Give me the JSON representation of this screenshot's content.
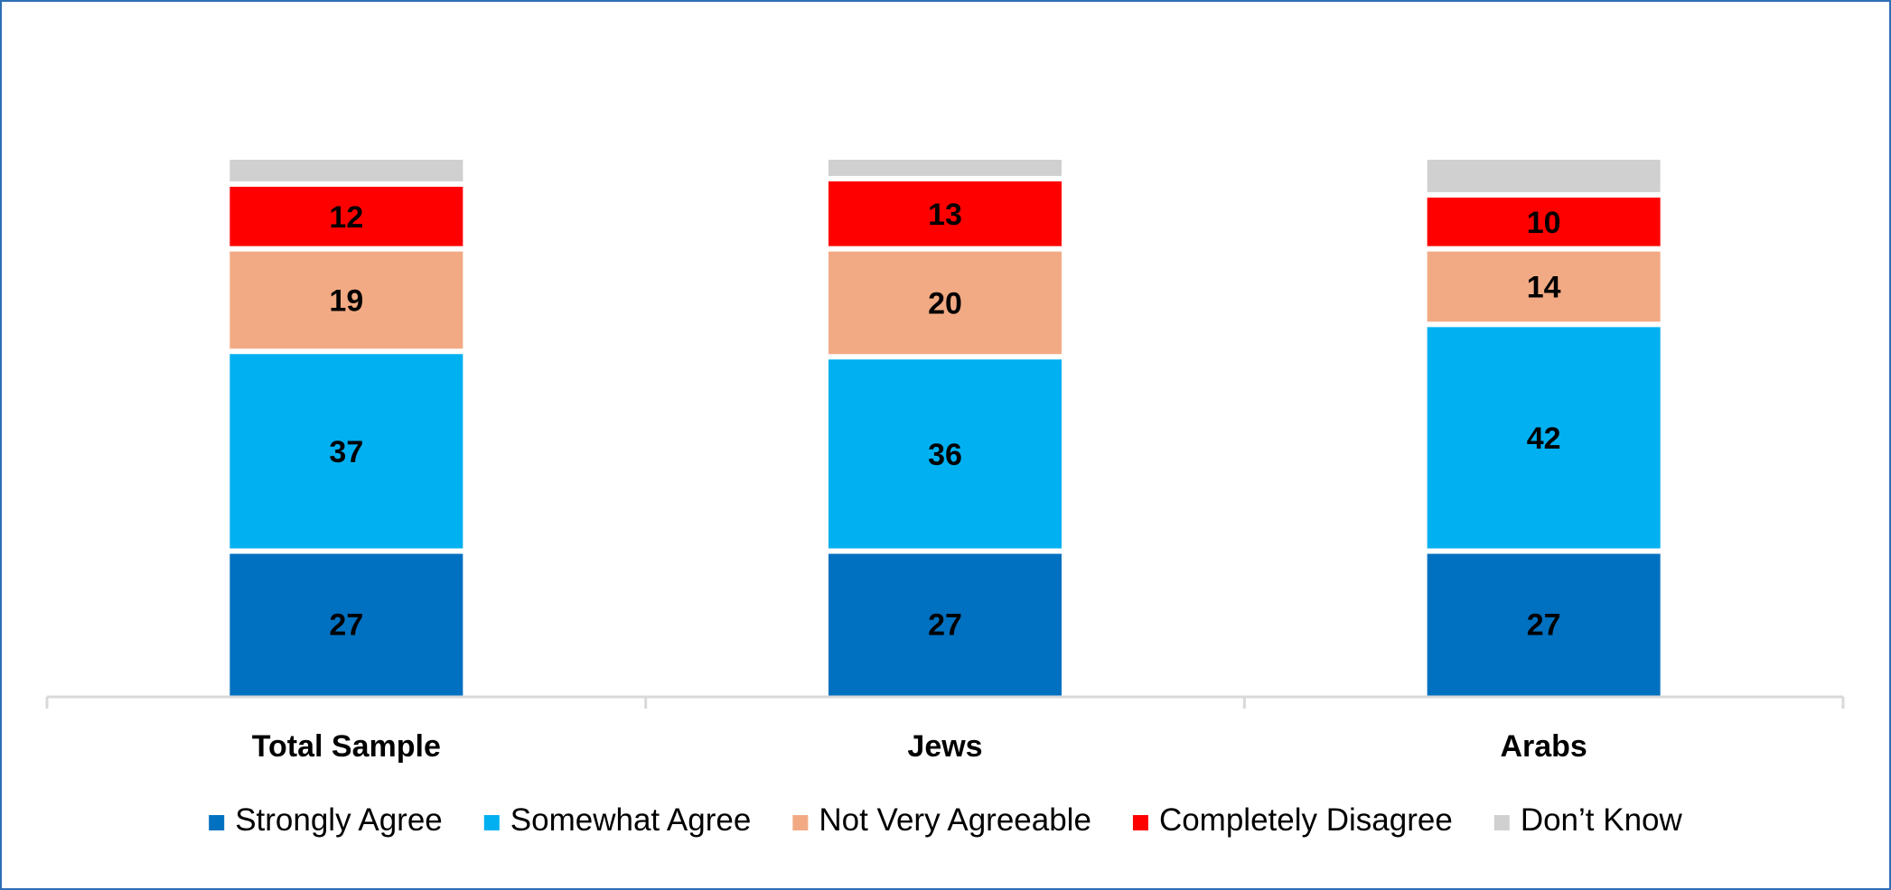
{
  "chart_data": {
    "type": "bar",
    "stacked": true,
    "categories": [
      "Total Sample",
      "Jews",
      "Arabs"
    ],
    "series": [
      {
        "name": "Strongly Agree",
        "color": "#0070C0",
        "values": [
          27,
          27,
          27
        ],
        "labels": [
          "27",
          "27",
          "27"
        ]
      },
      {
        "name": "Somewhat Agree",
        "color": "#00B0F0",
        "values": [
          37,
          36,
          42
        ],
        "labels": [
          "37",
          "36",
          "42"
        ]
      },
      {
        "name": "Not Very Agreeable",
        "color": "#F2AA84",
        "values": [
          19,
          20,
          14
        ],
        "labels": [
          "19",
          "20",
          "14"
        ]
      },
      {
        "name": "Completely Disagree",
        "color": "#FF0000",
        "values": [
          12,
          13,
          10
        ],
        "labels": [
          "12",
          "13",
          "10"
        ]
      },
      {
        "name": "Don’t Know",
        "color": "#D0D0D0",
        "values": [
          5,
          4,
          7
        ],
        "labels": [
          "",
          "",
          ""
        ]
      }
    ],
    "title": "",
    "xlabel": "",
    "ylabel": "",
    "ylim": [
      0,
      100
    ],
    "grid": false,
    "legend_position": "bottom",
    "axis_color": "#D9D9D9",
    "border_color": "#2E6FB5"
  }
}
